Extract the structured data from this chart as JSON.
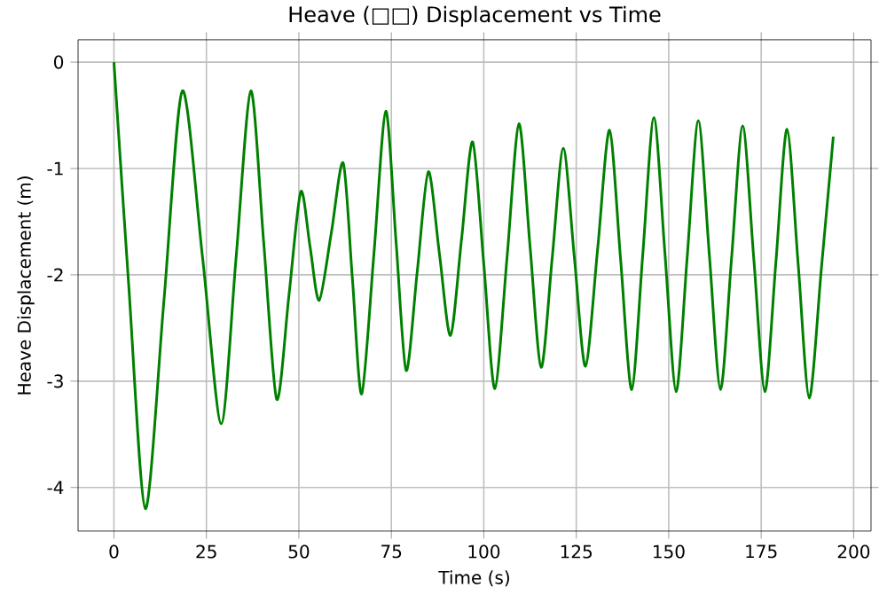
{
  "chart_data": {
    "type": "line",
    "title": "Heave (□□) Displacement vs Time",
    "xlabel": "Time (s)",
    "ylabel": "Heave Displacement (m)",
    "x": [
      0,
      4,
      8.5,
      13.5,
      18.5,
      24,
      29,
      33,
      37,
      40.5,
      44,
      47.3,
      50.5,
      53,
      55.5,
      58.8,
      62,
      64.5,
      67,
      70.3,
      73.5,
      76.3,
      79,
      82,
      85,
      88,
      91,
      94,
      97,
      100,
      103,
      106.3,
      109.5,
      112.5,
      115.5,
      118.5,
      121.5,
      124.5,
      127.5,
      130.8,
      134,
      137,
      140,
      143,
      146,
      149,
      152,
      155,
      158,
      161,
      164,
      167,
      170,
      173,
      176,
      179,
      182,
      185,
      188,
      191.3,
      194.5
    ],
    "series": [
      {
        "color": "#008000",
        "values": [
          0,
          -2.1,
          -4.2,
          -2.25,
          -0.27,
          -1.85,
          -3.4,
          -1.85,
          -0.27,
          -1.7,
          -3.17,
          -2.2,
          -1.22,
          -1.73,
          -2.24,
          -1.6,
          -0.95,
          -2.05,
          -3.12,
          -1.8,
          -0.46,
          -1.7,
          -2.9,
          -1.97,
          -1.03,
          -1.8,
          -2.57,
          -1.66,
          -0.75,
          -1.9,
          -3.07,
          -1.83,
          -0.58,
          -1.73,
          -2.87,
          -1.84,
          -0.81,
          -1.84,
          -2.86,
          -1.75,
          -0.64,
          -1.86,
          -3.08,
          -1.8,
          -0.52,
          -1.81,
          -3.1,
          -1.83,
          -0.55,
          -1.82,
          -3.08,
          -1.84,
          -0.6,
          -1.85,
          -3.1,
          -1.87,
          -0.63,
          -1.9,
          -3.16,
          -1.93,
          -0.7
        ]
      }
    ],
    "xlim": [
      -9.7,
      204.7
    ],
    "ylim": [
      -4.41,
      0.21
    ],
    "xticks": [
      0,
      25,
      50,
      75,
      100,
      125,
      150,
      175,
      200
    ],
    "yticks": [
      -4,
      -3,
      -2,
      -1,
      0
    ],
    "grid": true,
    "marker": "none",
    "line_style": "solid"
  }
}
